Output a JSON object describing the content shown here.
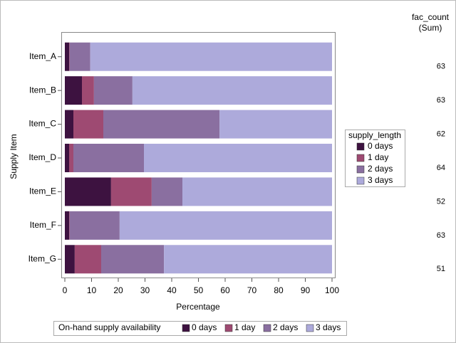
{
  "chart_data": {
    "type": "bar",
    "orientation": "horizontal",
    "stacked": true,
    "x_label": "Percentage",
    "y_label": "Supply Item",
    "categories": [
      "Item_A",
      "Item_B",
      "Item_C",
      "Item_D",
      "Item_E",
      "Item_F",
      "Item_G"
    ],
    "series": [
      {
        "name": "0 days",
        "color": "#3d1240",
        "values": [
          1.6,
          6.4,
          3.2,
          1.6,
          17.3,
          1.6,
          3.7
        ]
      },
      {
        "name": "1 day",
        "color": "#9e4a72",
        "values": [
          0.2,
          4.5,
          11.2,
          1.6,
          15.2,
          0.2,
          9.9
        ]
      },
      {
        "name": "2 days",
        "color": "#8a6fa0",
        "values": [
          7.7,
          14.4,
          43.5,
          26.4,
          11.5,
          18.7,
          23.5
        ]
      },
      {
        "name": "3 days",
        "color": "#adaadb",
        "values": [
          90.5,
          74.7,
          42.1,
          70.4,
          56,
          79.5,
          62.9
        ]
      }
    ],
    "xlim": [
      0,
      100
    ],
    "xticks": [
      0,
      10,
      20,
      30,
      40,
      50,
      60,
      70,
      80,
      90,
      100
    ],
    "legend": {
      "title": "supply_length",
      "position": "right"
    },
    "bottom_legend": {
      "label": "On-hand supply availability"
    },
    "fac_count": {
      "header": [
        "fac_count",
        "(Sum)"
      ],
      "values": [
        63,
        63,
        62,
        64,
        52,
        63,
        51
      ]
    }
  }
}
